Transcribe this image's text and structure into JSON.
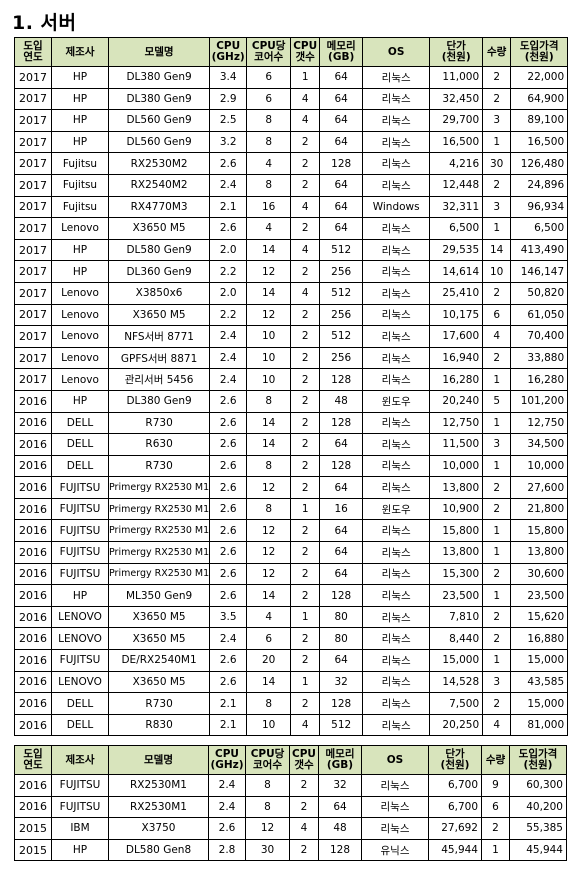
{
  "section_title": "1.  서버",
  "headers": [
    [
      "도입",
      "연도"
    ],
    [
      "제조사"
    ],
    [
      "모델명"
    ],
    [
      "CPU",
      "(GHz)"
    ],
    [
      "CPU당",
      "코어수"
    ],
    [
      "CPU",
      "갯수"
    ],
    [
      "메모리",
      "(GB)"
    ],
    [
      "OS"
    ],
    [
      "단가",
      "(천원)"
    ],
    [
      "수량"
    ],
    [
      "도입가격",
      "(천원)"
    ]
  ],
  "table1_rows": [
    [
      "2017",
      "HP",
      "DL380  Gen9",
      "3.4",
      "6",
      "1",
      "64",
      "리눅스",
      "11,000",
      "2",
      "22,000"
    ],
    [
      "2017",
      "HP",
      "DL380  Gen9",
      "2.9",
      "6",
      "4",
      "64",
      "리눅스",
      "32,450",
      "2",
      "64,900"
    ],
    [
      "2017",
      "HP",
      "DL560  Gen9",
      "2.5",
      "8",
      "4",
      "64",
      "리눅스",
      "29,700",
      "3",
      "89,100"
    ],
    [
      "2017",
      "HP",
      "DL560  Gen9",
      "3.2",
      "8",
      "2",
      "64",
      "리눅스",
      "16,500",
      "1",
      "16,500"
    ],
    [
      "2017",
      "Fujitsu",
      "RX2530M2",
      "2.6",
      "4",
      "2",
      "128",
      "리눅스",
      "4,216",
      "30",
      "126,480"
    ],
    [
      "2017",
      "Fujitsu",
      "RX2540M2",
      "2.4",
      "8",
      "2",
      "64",
      "리눅스",
      "12,448",
      "2",
      "24,896"
    ],
    [
      "2017",
      "Fujitsu",
      "RX4770M3",
      "2.1",
      "16",
      "4",
      "64",
      "Windows",
      "32,311",
      "3",
      "96,934"
    ],
    [
      "2017",
      "Lenovo",
      "X3650  M5",
      "2.6",
      "4",
      "2",
      "64",
      "리눅스",
      "6,500",
      "1",
      "6,500"
    ],
    [
      "2017",
      "HP",
      "DL580  Gen9",
      "2.0",
      "14",
      "4",
      "512",
      "리눅스",
      "29,535",
      "14",
      "413,490"
    ],
    [
      "2017",
      "HP",
      "DL360  Gen9",
      "2.2",
      "12",
      "2",
      "256",
      "리눅스",
      "14,614",
      "10",
      "146,147"
    ],
    [
      "2017",
      "Lenovo",
      "X3850x6",
      "2.0",
      "14",
      "4",
      "512",
      "리눅스",
      "25,410",
      "2",
      "50,820"
    ],
    [
      "2017",
      "Lenovo",
      "X3650  M5",
      "2.2",
      "12",
      "2",
      "256",
      "리눅스",
      "10,175",
      "6",
      "61,050"
    ],
    [
      "2017",
      "Lenovo",
      "NFS서버  8771",
      "2.4",
      "10",
      "2",
      "512",
      "리눅스",
      "17,600",
      "4",
      "70,400"
    ],
    [
      "2017",
      "Lenovo",
      "GPFS서버  8871",
      "2.4",
      "10",
      "2",
      "256",
      "리눅스",
      "16,940",
      "2",
      "33,880"
    ],
    [
      "2017",
      "Lenovo",
      "관리서버  5456",
      "2.4",
      "10",
      "2",
      "128",
      "리눅스",
      "16,280",
      "1",
      "16,280"
    ],
    [
      "2016",
      "HP",
      "DL380  Gen9",
      "2.6",
      "8",
      "2",
      "48",
      "윈도우",
      "20,240",
      "5",
      "101,200"
    ],
    [
      "2016",
      "DELL",
      "R730",
      "2.6",
      "14",
      "2",
      "128",
      "리눅스",
      "12,750",
      "1",
      "12,750"
    ],
    [
      "2016",
      "DELL",
      "R630",
      "2.6",
      "14",
      "2",
      "64",
      "리눅스",
      "11,500",
      "3",
      "34,500"
    ],
    [
      "2016",
      "DELL",
      "R730",
      "2.6",
      "8",
      "2",
      "128",
      "리눅스",
      "10,000",
      "1",
      "10,000"
    ],
    [
      "2016",
      "FUJITSU",
      "Primergy  RX2530  M1",
      "2.6",
      "12",
      "2",
      "64",
      "리눅스",
      "13,800",
      "2",
      "27,600"
    ],
    [
      "2016",
      "FUJITSU",
      "Primergy  RX2530  M1",
      "2.6",
      "8",
      "1",
      "16",
      "윈도우",
      "10,900",
      "2",
      "21,800"
    ],
    [
      "2016",
      "FUJITSU",
      "Primergy  RX2530  M1",
      "2.6",
      "12",
      "2",
      "64",
      "리눅스",
      "15,800",
      "1",
      "15,800"
    ],
    [
      "2016",
      "FUJITSU",
      "Primergy  RX2530  M1",
      "2.6",
      "12",
      "2",
      "64",
      "리눅스",
      "13,800",
      "1",
      "13,800"
    ],
    [
      "2016",
      "FUJITSU",
      "Primergy  RX2530  M1",
      "2.6",
      "12",
      "2",
      "64",
      "리눅스",
      "15,300",
      "2",
      "30,600"
    ],
    [
      "2016",
      "HP",
      "ML350  Gen9",
      "2.6",
      "14",
      "2",
      "128",
      "리눅스",
      "23,500",
      "1",
      "23,500"
    ],
    [
      "2016",
      "LENOVO",
      "X3650  M5",
      "3.5",
      "4",
      "1",
      "80",
      "리눅스",
      "7,810",
      "2",
      "15,620"
    ],
    [
      "2016",
      "LENOVO",
      "X3650  M5",
      "2.4",
      "6",
      "2",
      "80",
      "리눅스",
      "8,440",
      "2",
      "16,880"
    ],
    [
      "2016",
      "FUJITSU",
      "DE/RX2540M1",
      "2.6",
      "20",
      "2",
      "64",
      "리눅스",
      "15,000",
      "1",
      "15,000"
    ],
    [
      "2016",
      "LENOVO",
      "X3650  M5",
      "2.6",
      "14",
      "1",
      "32",
      "리눅스",
      "14,528",
      "3",
      "43,585"
    ],
    [
      "2016",
      "DELL",
      "R730",
      "2.1",
      "8",
      "2",
      "128",
      "리눅스",
      "7,500",
      "2",
      "15,000"
    ],
    [
      "2016",
      "DELL",
      "R830",
      "2.1",
      "10",
      "4",
      "512",
      "리눅스",
      "20,250",
      "4",
      "81,000"
    ]
  ],
  "table2_rows": [
    [
      "2016",
      "FUJITSU",
      "RX2530M1",
      "2.4",
      "8",
      "2",
      "32",
      "리눅스",
      "6,700",
      "9",
      "60,300"
    ],
    [
      "2016",
      "FUJITSU",
      "RX2530M1",
      "2.4",
      "8",
      "2",
      "64",
      "리눅스",
      "6,700",
      "6",
      "40,200"
    ],
    [
      "2015",
      "IBM",
      "X3750",
      "2.6",
      "12",
      "4",
      "48",
      "리눅스",
      "27,692",
      "2",
      "55,385"
    ],
    [
      "2015",
      "HP",
      "DL580  Gen8",
      "2.8",
      "30",
      "2",
      "128",
      "유닉스",
      "45,944",
      "1",
      "45,944"
    ]
  ],
  "colors": {
    "header_bg": "#d8e4bc",
    "border": "#000000"
  }
}
